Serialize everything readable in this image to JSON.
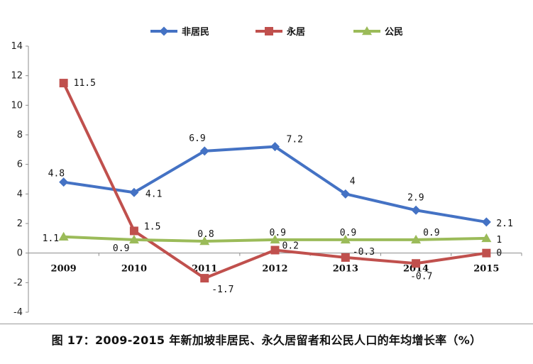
{
  "chart_data": {
    "type": "line",
    "categories": [
      "2009",
      "2010",
      "2011",
      "2012",
      "2013",
      "2014",
      "2015"
    ],
    "ylim": [
      -4,
      14
    ],
    "yticks": [
      -4,
      -2,
      0,
      2,
      4,
      6,
      8,
      10,
      12,
      14
    ],
    "grid": false,
    "legend_position": "top",
    "series": [
      {
        "name": "非居民",
        "color": "#4472C4",
        "marker": "diamond",
        "values": [
          4.8,
          4.1,
          6.9,
          7.2,
          4,
          2.9,
          2.1
        ],
        "labels": [
          "4.8",
          "4.1",
          "6.9",
          "7.2",
          "4",
          "2.9",
          "2.1"
        ]
      },
      {
        "name": "永居",
        "color": "#C0504D",
        "marker": "square",
        "values": [
          11.5,
          1.5,
          -1.7,
          0.2,
          -0.3,
          -0.7,
          0
        ],
        "labels": [
          "11.5",
          "1.5",
          "-1.7",
          "0.2",
          "-0.3",
          "-0.7",
          "0"
        ]
      },
      {
        "name": "公民",
        "color": "#9BBB59",
        "marker": "triangle",
        "values": [
          1.1,
          0.9,
          0.8,
          0.9,
          0.9,
          0.9,
          1
        ],
        "labels": [
          "1.1",
          "0.9",
          "0.8",
          "0.9",
          "0.9",
          "0.9",
          "1"
        ]
      }
    ]
  },
  "caption": "图 17：2009-2015 年新加坡非居民、永久居留者和公民人口的年均增长率（%）"
}
